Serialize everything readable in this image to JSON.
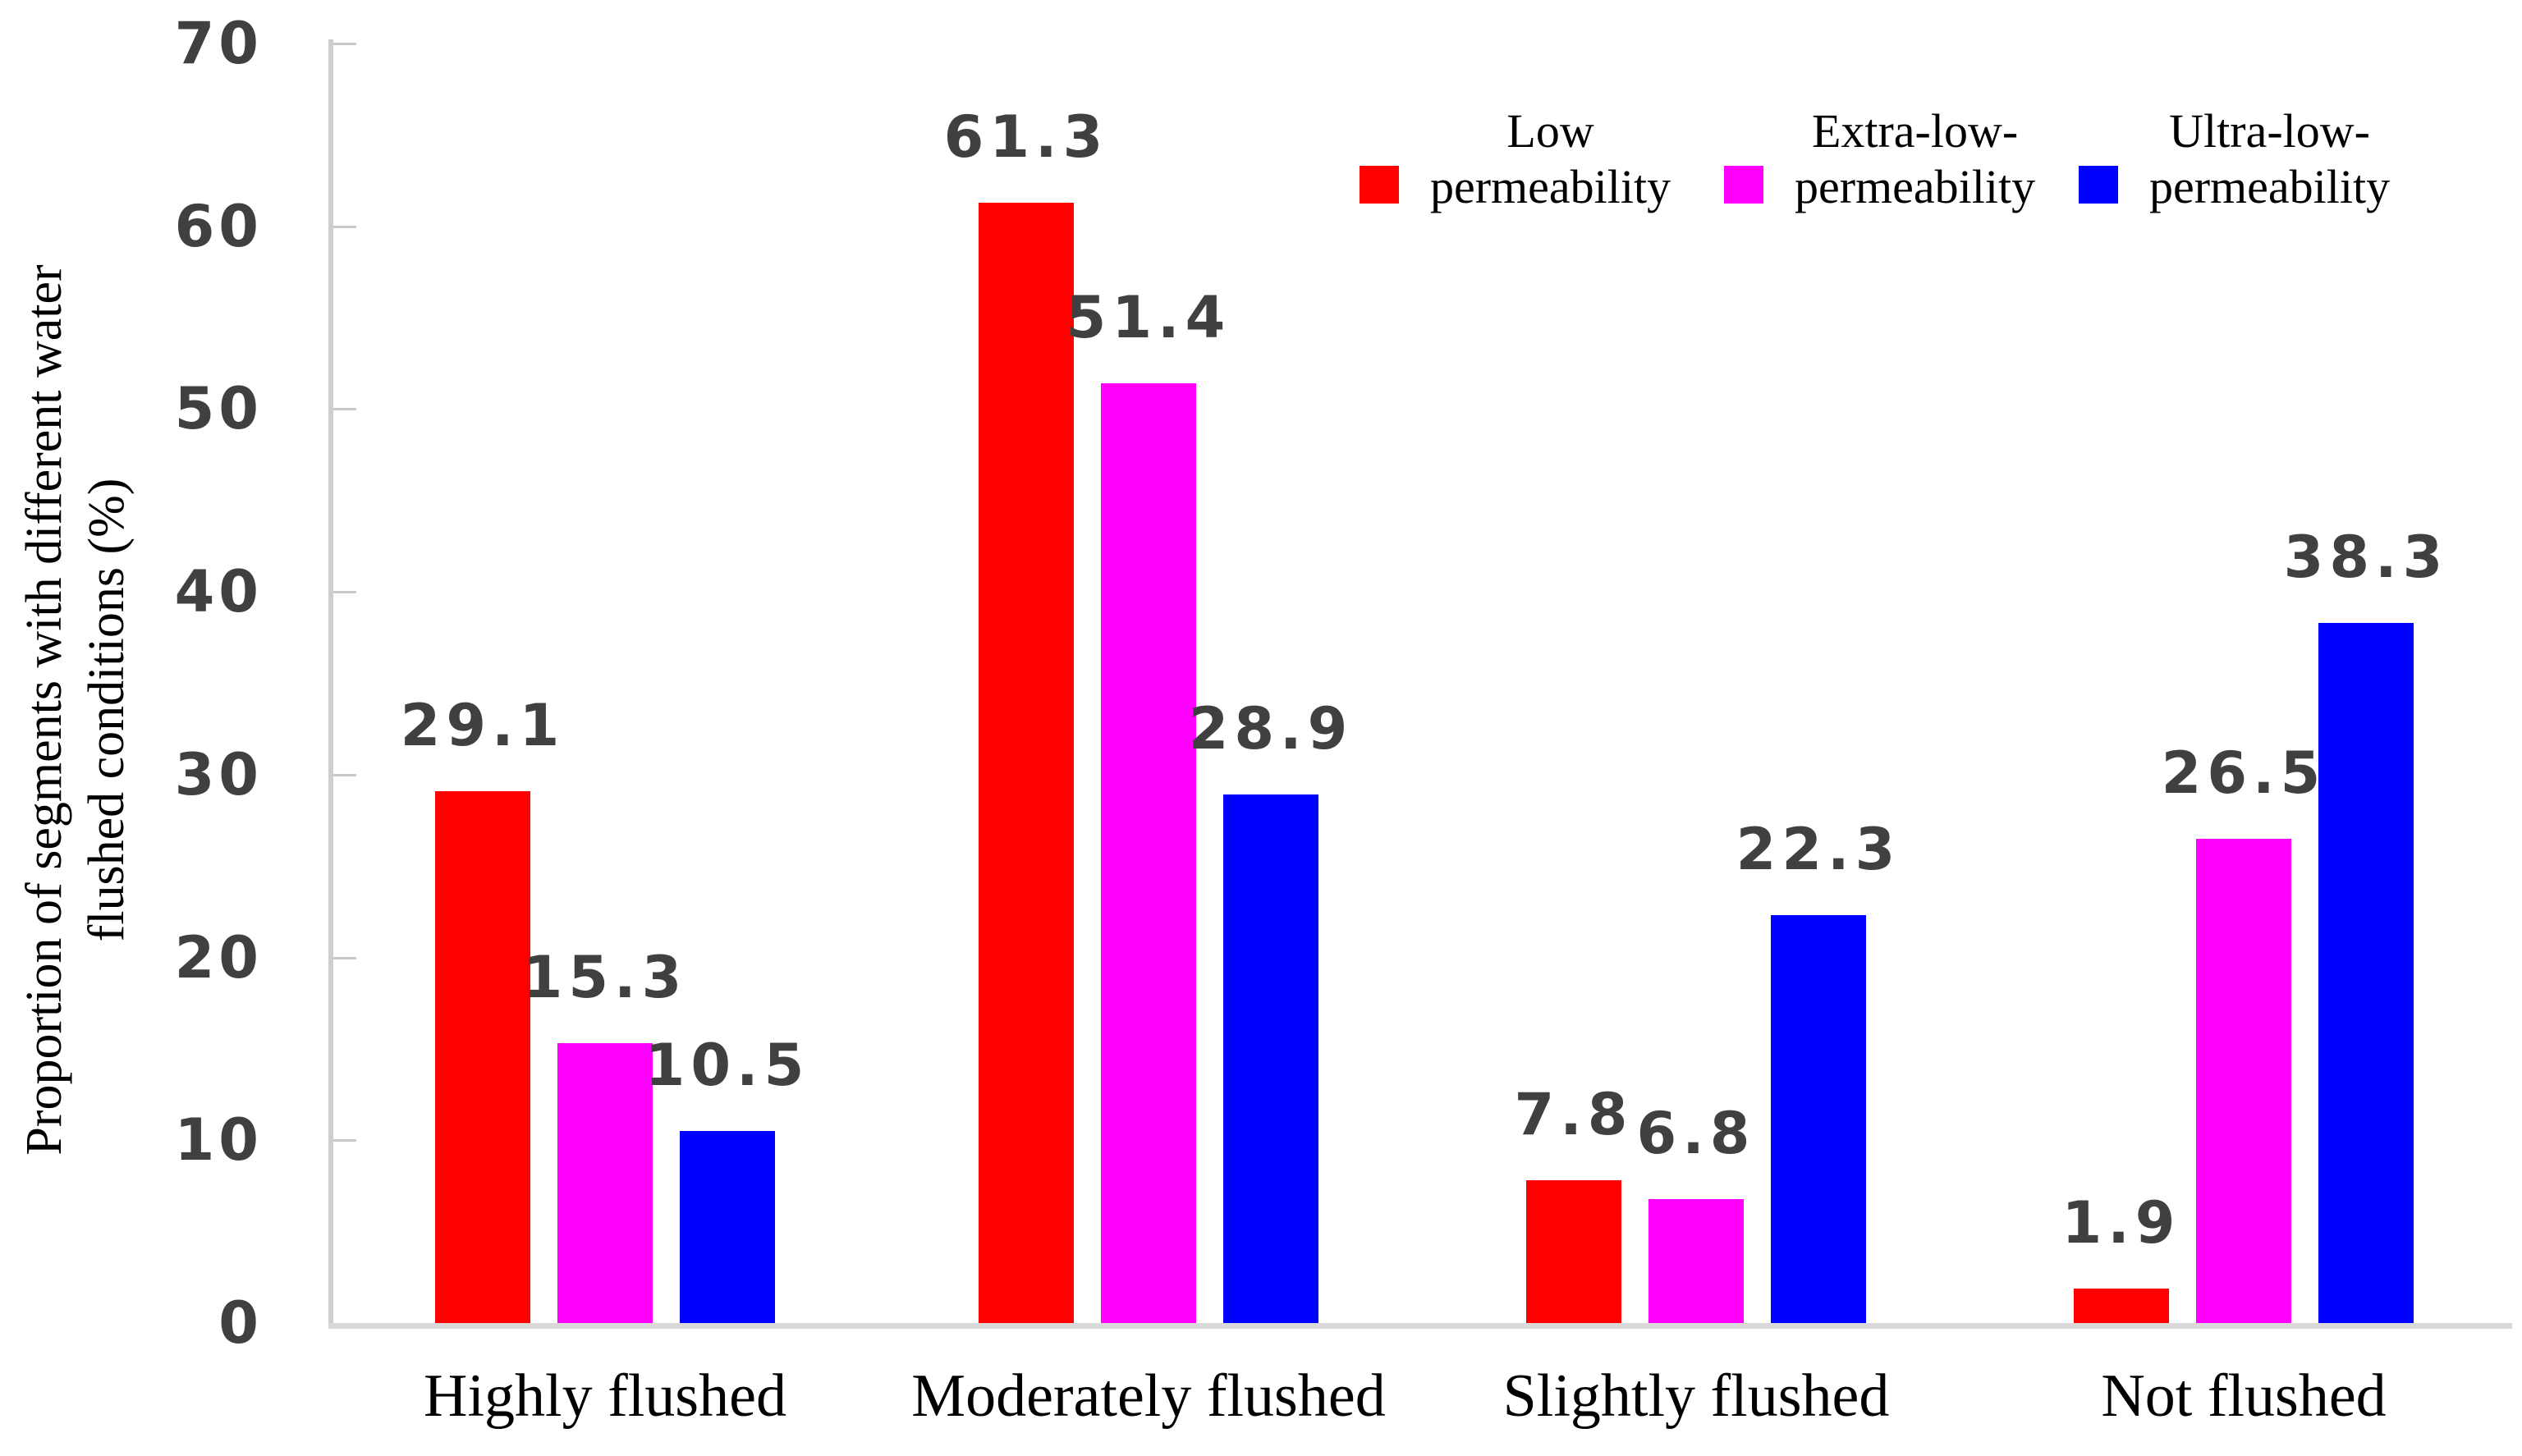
{
  "chart_data": {
    "type": "bar",
    "title": "",
    "categories": [
      "Highly flushed",
      "Moderately flushed",
      "Slightly flushed",
      "Not flushed"
    ],
    "series": [
      {
        "name": "Low permeability",
        "legend_lines": [
          "Low",
          "permeability"
        ],
        "color": "#ff0000",
        "values": [
          29.1,
          61.3,
          7.8,
          1.9
        ]
      },
      {
        "name": "Extra-low-permeability",
        "legend_lines": [
          "Extra-low-",
          "permeability"
        ],
        "color": "#ff00ff",
        "values": [
          15.3,
          51.4,
          6.8,
          26.5
        ]
      },
      {
        "name": "Ultra-low-permeability",
        "legend_lines": [
          "Ultra-low-",
          "permeability"
        ],
        "color": "#0000ff",
        "values": [
          10.5,
          28.9,
          22.3,
          38.3
        ]
      }
    ],
    "xlabel": "",
    "ylabel_lines": [
      "Proportion of segments with different water",
      "flushed conditions (%)"
    ],
    "ylim": [
      0,
      70
    ],
    "yticks": [
      0,
      10,
      20,
      30,
      40,
      50,
      60,
      70
    ],
    "grid": false,
    "legend_position": "top-right",
    "value_labels": true
  },
  "colors": {
    "background": "#ffffff",
    "y_axis_line": "#cfcfcf",
    "x_axis_line": "#d9d9d9",
    "tick_mark": "#c9c9c9",
    "number_text": "#404040",
    "label_text": "#000000"
  }
}
